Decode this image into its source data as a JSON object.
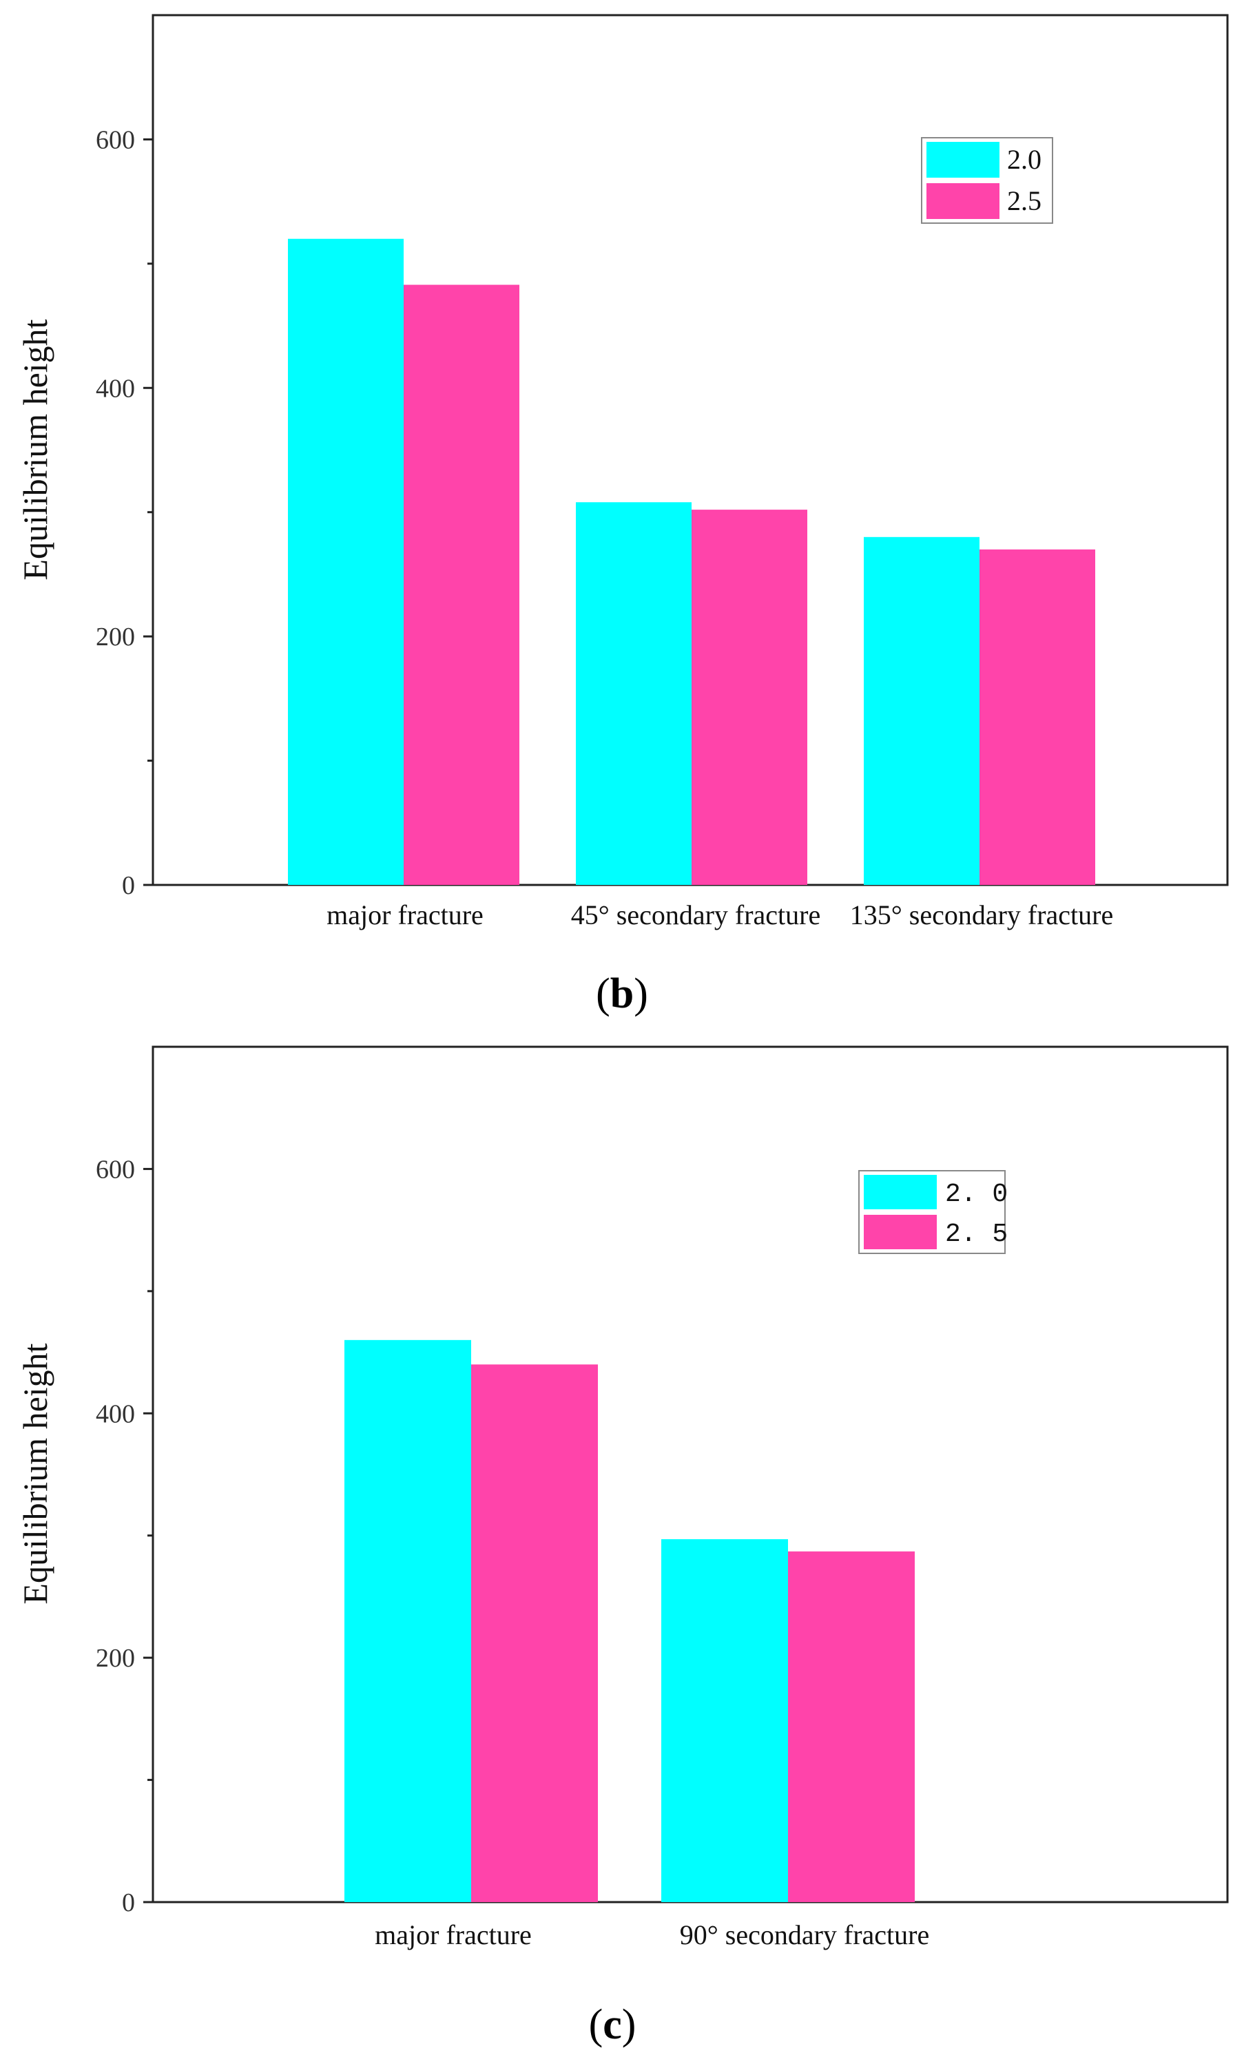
{
  "chart_data": [
    {
      "type": "bar",
      "panel_label": "b",
      "title": "",
      "xlabel": "",
      "ylabel": "Equilibrium height",
      "ylim": [
        0,
        700
      ],
      "yticks": [
        0,
        200,
        400,
        600
      ],
      "yticks_minor": [
        100,
        300,
        500
      ],
      "categories": [
        "major fracture",
        "45° secondary fracture",
        "135° secondary fracture"
      ],
      "series": [
        {
          "name": "2.0",
          "color": "#00FFFF",
          "values": [
            520,
            308,
            280
          ]
        },
        {
          "name": "2.5",
          "color": "#FF44AA",
          "values": [
            483,
            302,
            270
          ]
        }
      ],
      "legend_position": "top-right"
    },
    {
      "type": "bar",
      "panel_label": "c",
      "title": "",
      "xlabel": "",
      "ylabel": "Equilibrium height",
      "ylim": [
        0,
        700
      ],
      "yticks": [
        0,
        200,
        400,
        600
      ],
      "yticks_minor": [
        100,
        300,
        500
      ],
      "categories": [
        "major fracture",
        "90° secondary fracture"
      ],
      "series": [
        {
          "name": "2. 0",
          "color": "#00FFFF",
          "values": [
            460,
            297
          ]
        },
        {
          "name": "2. 5",
          "color": "#FF44AA",
          "values": [
            440,
            287
          ]
        }
      ],
      "legend_position": "top-right"
    }
  ]
}
